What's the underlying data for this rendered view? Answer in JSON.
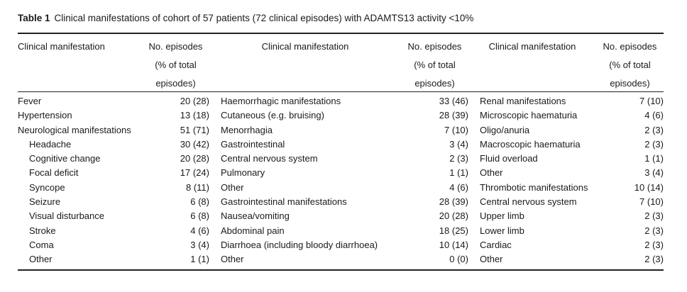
{
  "caption": {
    "label": "Table 1",
    "text": "Clinical manifestations of cohort of 57 patients (72 clinical episodes) with ADAMTS13 activity <10%"
  },
  "headers": {
    "manifestation": "Clinical manifestation",
    "episodes_line1": "No. episodes",
    "episodes_line2": "(% of total",
    "episodes_line3": "episodes)"
  },
  "rows": [
    [
      {
        "label": "Fever",
        "value": "20 (28)"
      },
      {
        "label": "Haemorrhagic manifestations",
        "value": "33 (46)"
      },
      {
        "label": "Renal manifestations",
        "value": "7 (10)"
      }
    ],
    [
      {
        "label": "Hypertension",
        "value": "13 (18)"
      },
      {
        "label": "Cutaneous (e.g. bruising)",
        "value": "28 (39)"
      },
      {
        "label": "Microscopic haematuria",
        "value": "4 (6)"
      }
    ],
    [
      {
        "label": "Neurological manifestations",
        "value": "51 (71)"
      },
      {
        "label": "Menorrhagia",
        "value": "7 (10)"
      },
      {
        "label": "Oligo/anuria",
        "value": "2 (3)"
      }
    ],
    [
      {
        "label": "Headache",
        "value": "30 (42)"
      },
      {
        "label": "Gastrointestinal",
        "value": "3 (4)"
      },
      {
        "label": "Macroscopic haematuria",
        "value": "2 (3)"
      }
    ],
    [
      {
        "label": "Cognitive change",
        "value": "20 (28)"
      },
      {
        "label": "Central nervous system",
        "value": "2 (3)"
      },
      {
        "label": "Fluid overload",
        "value": "1 (1)"
      }
    ],
    [
      {
        "label": "Focal deficit",
        "value": "17 (24)"
      },
      {
        "label": "Pulmonary",
        "value": "1 (1)"
      },
      {
        "label": "Other",
        "value": "3 (4)"
      }
    ],
    [
      {
        "label": "Syncope",
        "value": "8 (11)"
      },
      {
        "label": "Other",
        "value": "4 (6)"
      },
      {
        "label": "Thrombotic manifestations",
        "value": "10 (14)"
      }
    ],
    [
      {
        "label": "Seizure",
        "value": "6 (8)"
      },
      {
        "label": "Gastrointestinal manifestations",
        "value": "28 (39)"
      },
      {
        "label": "Central nervous system",
        "value": "7 (10)"
      }
    ],
    [
      {
        "label": "Visual disturbance",
        "value": "6 (8)"
      },
      {
        "label": "Nausea/vomiting",
        "value": "20 (28)"
      },
      {
        "label": "Upper limb",
        "value": "2 (3)"
      }
    ],
    [
      {
        "label": "Stroke",
        "value": "4 (6)"
      },
      {
        "label": "Abdominal pain",
        "value": "18 (25)"
      },
      {
        "label": "Lower limb",
        "value": "2 (3)"
      }
    ],
    [
      {
        "label": "Coma",
        "value": "3 (4)"
      },
      {
        "label": "Diarrhoea (including bloody diarrhoea)",
        "value": "10 (14)"
      },
      {
        "label": "Cardiac",
        "value": "2 (3)"
      }
    ],
    [
      {
        "label": "Other",
        "value": "1 (1)"
      },
      {
        "label": "Other",
        "value": "0 (0)"
      },
      {
        "label": "Other",
        "value": "2 (3)"
      }
    ]
  ],
  "subitem_flags": [
    [
      false,
      false,
      false
    ],
    [
      false,
      true,
      true
    ],
    [
      false,
      true,
      true
    ],
    [
      true,
      true,
      true
    ],
    [
      true,
      true,
      true
    ],
    [
      true,
      true,
      true
    ],
    [
      true,
      true,
      false
    ],
    [
      true,
      false,
      true
    ],
    [
      true,
      true,
      true
    ],
    [
      true,
      true,
      true
    ],
    [
      true,
      true,
      true
    ],
    [
      true,
      true,
      true
    ]
  ]
}
